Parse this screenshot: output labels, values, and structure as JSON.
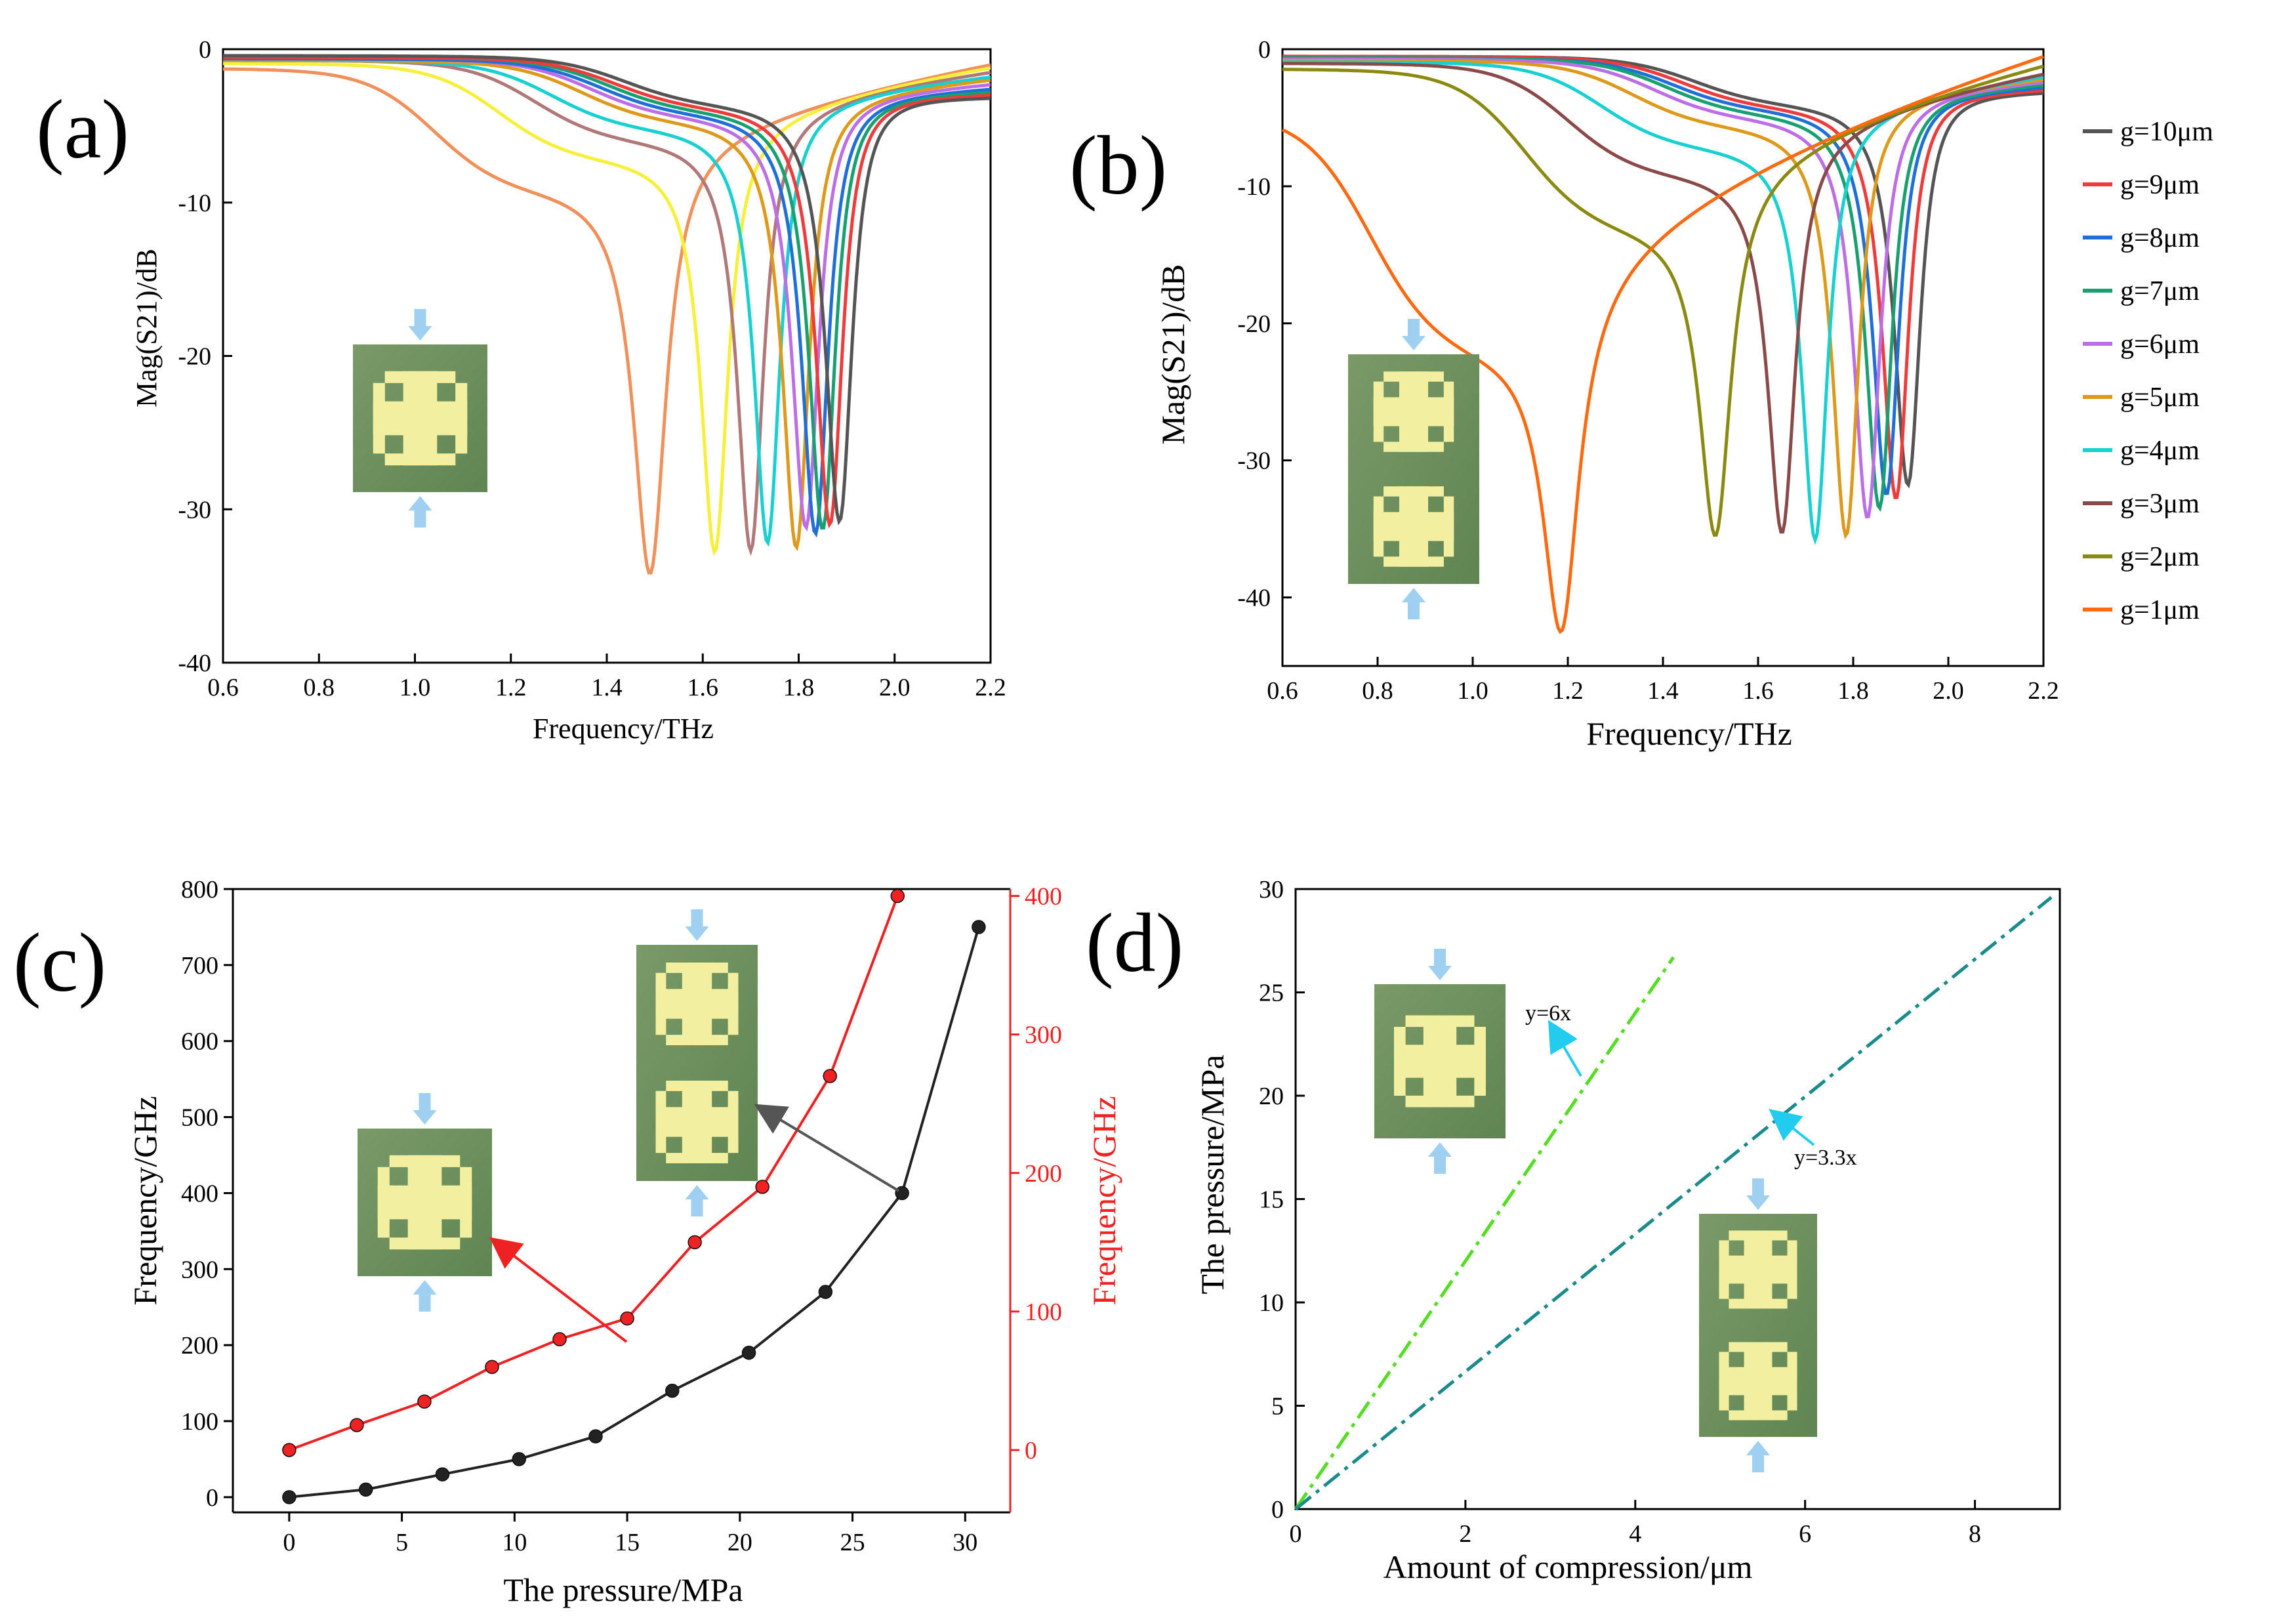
{
  "colors": {
    "g10": "#555555",
    "g9": "#ee3b3b",
    "g8": "#1f6fd6",
    "g7": "#18a070",
    "g6": "#bb6ee6",
    "g5": "#dd9a1a",
    "g4": "#18d0d0",
    "g3": "#8a4a4a",
    "g2": "#8a8a10",
    "g1": "#ff6a10",
    "a_coral": "#f0905a",
    "a_yellow": "#f6f03a",
    "a_mauve": "#b07878",
    "black": "#222222",
    "red": "#ee2222",
    "lime": "#55dd22",
    "teal": "#1a8a8a",
    "cyan": "#22ccee"
  },
  "chart_data": [
    {
      "id": "a",
      "panel_label": "(a)",
      "type": "line",
      "xlabel": "Frequency/THz",
      "ylabel": "Mag(S21)/dB",
      "xlim": [
        0.6,
        2.2
      ],
      "ylim": [
        -40,
        0
      ],
      "xticks": [
        0.6,
        0.8,
        1.0,
        1.2,
        1.4,
        1.6,
        1.8,
        2.0,
        2.2
      ],
      "yticks": [
        -40,
        -30,
        -20,
        -10,
        0
      ],
      "xtick_labels": [
        "0.6",
        "0.8",
        "1.0",
        "1.2",
        "1.4",
        "1.6",
        "1.8",
        "2.0",
        "2.2"
      ],
      "ytick_labels": [
        "-40",
        "-30",
        "-20",
        "-10",
        "0"
      ],
      "series": [
        {
          "name": "",
          "color_key": "a_coral",
          "f0": 1.49,
          "depth": -34.2,
          "w": 0.042,
          "base": -1.2,
          "shoulder": -9.0,
          "sw": 0.45,
          "end": -1.0
        },
        {
          "name": "",
          "color_key": "a_yellow",
          "f0": 1.625,
          "depth": -32.8,
          "w": 0.035,
          "base": -0.9,
          "shoulder": -7.0,
          "sw": 0.45,
          "end": -1.2
        },
        {
          "name": "",
          "color_key": "a_mauve",
          "f0": 1.7,
          "depth": -32.7,
          "w": 0.034,
          "base": -0.7,
          "shoulder": -5.8,
          "sw": 0.45,
          "end": -1.5
        },
        {
          "name": "",
          "color_key": "g4",
          "f0": 1.735,
          "depth": -32.2,
          "w": 0.034,
          "base": -0.7,
          "shoulder": -5.0,
          "sw": 0.45,
          "end": -1.8
        },
        {
          "name": "",
          "color_key": "g5",
          "f0": 1.795,
          "depth": -32.5,
          "w": 0.035,
          "base": -0.7,
          "shoulder": -4.5,
          "sw": 0.45,
          "end": -2.0
        },
        {
          "name": "",
          "color_key": "g6",
          "f0": 1.815,
          "depth": -31.2,
          "w": 0.035,
          "base": -0.6,
          "shoulder": -4.2,
          "sw": 0.45,
          "end": -2.3
        },
        {
          "name": "",
          "color_key": "g8",
          "f0": 1.835,
          "depth": -31.6,
          "w": 0.035,
          "base": -0.6,
          "shoulder": -4.0,
          "sw": 0.45,
          "end": -2.6
        },
        {
          "name": "",
          "color_key": "g7",
          "f0": 1.85,
          "depth": -31.3,
          "w": 0.035,
          "base": -0.5,
          "shoulder": -3.8,
          "sw": 0.45,
          "end": -2.8
        },
        {
          "name": "",
          "color_key": "g9",
          "f0": 1.865,
          "depth": -31.0,
          "w": 0.035,
          "base": -0.5,
          "shoulder": -3.6,
          "sw": 0.45,
          "end": -3.0
        },
        {
          "name": "",
          "color_key": "g10",
          "f0": 1.885,
          "depth": -30.8,
          "w": 0.035,
          "base": -0.4,
          "shoulder": -3.4,
          "sw": 0.45,
          "end": -3.2
        }
      ]
    },
    {
      "id": "b",
      "panel_label": "(b)",
      "type": "line",
      "xlabel": "Frequency/THz",
      "ylabel": "Mag(S21)/dB",
      "xlim": [
        0.6,
        2.2
      ],
      "ylim": [
        -45,
        0
      ],
      "xticks": [
        0.6,
        0.8,
        1.0,
        1.2,
        1.4,
        1.6,
        1.8,
        2.0,
        2.2
      ],
      "yticks": [
        -40,
        -30,
        -20,
        -10,
        0
      ],
      "xtick_labels": [
        "0.6",
        "0.8",
        "1.0",
        "1.2",
        "1.4",
        "1.6",
        "1.8",
        "2.0",
        "2.2"
      ],
      "ytick_labels": [
        "-40",
        "-30",
        "-20",
        "-10",
        "0"
      ],
      "series": [
        {
          "name": "g=10μm",
          "color_key": "g10",
          "f0": 1.915,
          "depth": -31.8,
          "w": 0.035,
          "base": -0.5,
          "shoulder": -3.8,
          "sw": 0.45,
          "end": -3.2
        },
        {
          "name": "g=9μm",
          "color_key": "g9",
          "f0": 1.89,
          "depth": -32.8,
          "w": 0.035,
          "base": -0.5,
          "shoulder": -4.0,
          "sw": 0.45,
          "end": -3.0
        },
        {
          "name": "g=8μm",
          "color_key": "g8",
          "f0": 1.87,
          "depth": -32.5,
          "w": 0.035,
          "base": -0.6,
          "shoulder": -4.2,
          "sw": 0.45,
          "end": -2.8
        },
        {
          "name": "g=7μm",
          "color_key": "g7",
          "f0": 1.855,
          "depth": -33.5,
          "w": 0.035,
          "base": -0.6,
          "shoulder": -4.5,
          "sw": 0.45,
          "end": -2.6
        },
        {
          "name": "g=6μm",
          "color_key": "g6",
          "f0": 1.83,
          "depth": -34.2,
          "w": 0.035,
          "base": -0.7,
          "shoulder": -4.8,
          "sw": 0.45,
          "end": -2.4
        },
        {
          "name": "g=5μm",
          "color_key": "g5",
          "f0": 1.785,
          "depth": -35.5,
          "w": 0.035,
          "base": -0.8,
          "shoulder": -5.4,
          "sw": 0.45,
          "end": -2.2
        },
        {
          "name": "g=4μm",
          "color_key": "g4",
          "f0": 1.72,
          "depth": -35.8,
          "w": 0.034,
          "base": -0.9,
          "shoulder": -7.0,
          "sw": 0.45,
          "end": -2.0
        },
        {
          "name": "g=3μm",
          "color_key": "g3",
          "f0": 1.65,
          "depth": -35.3,
          "w": 0.036,
          "base": -1.0,
          "shoulder": -9.0,
          "sw": 0.45,
          "end": -1.8
        },
        {
          "name": "g=2μm",
          "color_key": "g2",
          "f0": 1.51,
          "depth": -35.5,
          "w": 0.04,
          "base": -1.4,
          "shoulder": -13.0,
          "sw": 0.4,
          "end": -1.2
        },
        {
          "name": "g=1μm",
          "color_key": "g1",
          "f0": 1.185,
          "depth": -42.5,
          "w": 0.045,
          "base": -4.5,
          "shoulder": -22.0,
          "sw": 0.4,
          "end": -0.5
        }
      ]
    },
    {
      "id": "c",
      "panel_label": "(c)",
      "type": "line",
      "xlabel": "The pressure/MPa",
      "ylabel": "Frequency/GHz",
      "y2label": "Frequency/GHz",
      "xlim": [
        -2.5,
        32
      ],
      "ylim": [
        -20,
        800
      ],
      "y2lim": [
        -45,
        405
      ],
      "xticks": [
        0,
        5,
        10,
        15,
        20,
        25,
        30
      ],
      "yticks": [
        0,
        100,
        200,
        300,
        400,
        500,
        600,
        700,
        800
      ],
      "y2ticks": [
        0,
        100,
        200,
        300,
        400
      ],
      "xtick_labels": [
        "0",
        "5",
        "10",
        "15",
        "20",
        "25",
        "30"
      ],
      "ytick_labels": [
        "0",
        "100",
        "200",
        "300",
        "400",
        "500",
        "600",
        "700",
        "800"
      ],
      "y2tick_labels": [
        "0",
        "100",
        "200",
        "300",
        "400"
      ],
      "series": [
        {
          "name": "double",
          "axis": "left",
          "color_key": "black",
          "x": [
            0,
            3.4,
            6.8,
            10.2,
            13.6,
            17,
            20.4,
            23.8,
            27.2,
            30.6
          ],
          "y": [
            0,
            10,
            30,
            50,
            80,
            140,
            190,
            270,
            400,
            750
          ]
        },
        {
          "name": "single",
          "axis": "right",
          "color_key": "red",
          "x": [
            0,
            3,
            6,
            9,
            12,
            15,
            18,
            21,
            24,
            27
          ],
          "y": [
            0,
            18,
            35,
            60,
            80,
            95,
            150,
            190,
            270,
            400
          ]
        }
      ]
    },
    {
      "id": "d",
      "panel_label": "(d)",
      "type": "line",
      "xlabel": "Amount of compression/μm",
      "ylabel": "The pressure/MPa",
      "xlim": [
        0,
        9
      ],
      "ylim": [
        0,
        30
      ],
      "xticks": [
        0,
        2,
        4,
        6,
        8
      ],
      "yticks": [
        0,
        5,
        10,
        15,
        20,
        25,
        30
      ],
      "xtick_labels": [
        "0",
        "2",
        "4",
        "6",
        "8"
      ],
      "ytick_labels": [
        "0",
        "5",
        "10",
        "15",
        "20",
        "25",
        "30"
      ],
      "series": [
        {
          "name": "y=6x",
          "color_key": "lime",
          "x": [
            0,
            4.45
          ],
          "y": [
            0,
            26.7
          ]
        },
        {
          "name": "y=3.3x",
          "color_key": "teal",
          "x": [
            0,
            8.9
          ],
          "y": [
            0,
            29.6
          ]
        }
      ],
      "annotations": [
        "y=6x",
        "y=3.3x"
      ]
    }
  ]
}
